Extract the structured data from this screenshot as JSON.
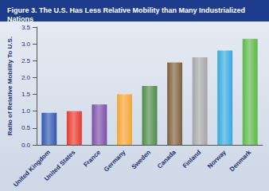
{
  "chart_data": {
    "type": "bar",
    "title": "Figure 3. The U.S. Has Less Relative Mobility than Many Industrialized Nations",
    "y_label": "Ratio of Relative Mobility To U.S.",
    "categories": [
      "United Kingdom",
      "United States",
      "France",
      "Germany",
      "Sweden",
      "Canada",
      "Finland",
      "Norway",
      "Denmark"
    ],
    "values": [
      0.95,
      1.0,
      1.2,
      1.5,
      1.75,
      2.45,
      2.6,
      2.8,
      3.15
    ],
    "colors": [
      "#2f56b0",
      "#e8392b",
      "#7b4fa9",
      "#f5a431",
      "#4e8a4c",
      "#7d5e3c",
      "#a5a5a5",
      "#35a7e0",
      "#5cb848"
    ],
    "ylim": [
      0,
      3.5
    ],
    "yticks": [
      {
        "value": 0,
        "label": "0.0"
      },
      0.5,
      {
        "value": 1,
        "label": "1.0"
      },
      1.5,
      {
        "value": 2,
        "label": "2.0"
      },
      2.5,
      {
        "value": 3,
        "label": "3.0"
      },
      3.5
    ],
    "grid": false
  }
}
